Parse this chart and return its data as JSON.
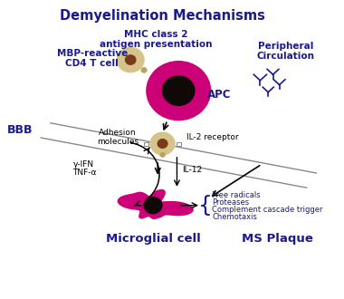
{
  "title": "Demyelination Mechanisms",
  "bg_color": "#f0f0f0",
  "navy": "#1a1a8c",
  "cell_colors": {
    "T_cell_outer": "#d4c48a",
    "T_cell_inner": "#7a3a18",
    "APC_outer": "#cc0077",
    "APC_inner": "#110808",
    "micro_outer": "#cc0077",
    "micro_inner": "#110808"
  },
  "labels": {
    "title": "Demyelination Mechanisms",
    "mbp": "MBP-reactive\nCD4 T cell",
    "mhc": "MHC class 2\nantigen presentation",
    "apc": "APC",
    "periph": "Peripheral\nCirculation",
    "bbb": "BBB",
    "adhesion": "Adhesion\nmolecules",
    "il2r": "IL-2 receptor",
    "gamma_ifn": "γ-IFN",
    "tnf": "TNF-α",
    "il12": "IL-12",
    "micro": "Microglial cell",
    "ms": "MS Plaque",
    "free_rad": "Free radicals\nProteases\nComplement cascade trigger\nChemotaxis"
  }
}
